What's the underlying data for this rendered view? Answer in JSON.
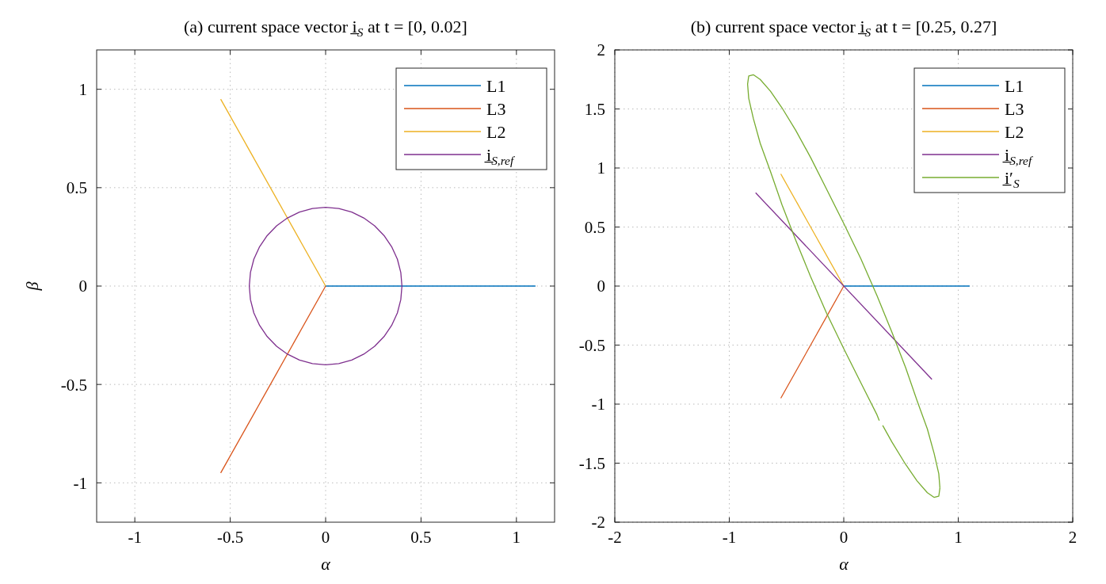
{
  "chart_data": [
    {
      "type": "line",
      "title": "(a) current space vector i̲$_{S}$ at t = [0, 0.02]",
      "xlabel": "α",
      "ylabel": "β",
      "xlim": [
        -1.2,
        1.2
      ],
      "ylim": [
        -1.2,
        1.2
      ],
      "xticks": [
        -1,
        -0.5,
        0,
        0.5,
        1
      ],
      "yticks": [
        -1,
        -0.5,
        0,
        0.5,
        1
      ],
      "grid": true,
      "legend": "top right",
      "series": [
        {
          "name": "L1",
          "color": "#0072bd",
          "x": [
            0,
            1.1
          ],
          "values": [
            0,
            0
          ]
        },
        {
          "name": "L3",
          "color": "#d95319",
          "x": [
            0,
            -0.55
          ],
          "values": [
            0,
            -0.95
          ]
        },
        {
          "name": "L2",
          "color": "#edb120",
          "x": [
            0,
            -0.55
          ],
          "values": [
            0,
            0.95
          ]
        },
        {
          "name": "i̲$_{S,ref}$",
          "color": "#7e2f8e",
          "x": [
            0.4,
            0.394,
            0.376,
            0.346,
            0.306,
            0.257,
            0.2,
            0.137,
            0.069,
            0,
            -0.069,
            -0.137,
            -0.2,
            -0.257,
            -0.306,
            -0.346,
            -0.376,
            -0.394,
            -0.4,
            -0.394,
            -0.376,
            -0.346,
            -0.306,
            -0.257,
            -0.2,
            -0.137,
            -0.069,
            0,
            0.069,
            0.137,
            0.2,
            0.257,
            0.306,
            0.346,
            0.376,
            0.394,
            0.4,
            0.394
          ],
          "values": [
            0,
            0.069,
            0.137,
            0.2,
            0.257,
            0.306,
            0.346,
            0.376,
            0.394,
            0.4,
            0.394,
            0.376,
            0.346,
            0.306,
            0.257,
            0.2,
            0.137,
            0.069,
            0,
            -0.069,
            -0.137,
            -0.2,
            -0.257,
            -0.306,
            -0.346,
            -0.376,
            -0.394,
            -0.4,
            -0.394,
            -0.376,
            -0.346,
            -0.306,
            -0.257,
            -0.2,
            -0.137,
            -0.069,
            0,
            0.069
          ]
        }
      ]
    },
    {
      "type": "line",
      "title": "(b) current space vector i̲$_{S}$ at t = [0.25, 0.27]",
      "xlabel": "α",
      "xlim": [
        -2,
        2
      ],
      "ylim": [
        -2,
        2
      ],
      "xticks": [
        -2,
        -1,
        0,
        1,
        2
      ],
      "yticks": [
        -2,
        -1.5,
        -1,
        -0.5,
        0,
        0.5,
        1,
        1.5,
        2
      ],
      "grid": true,
      "legend": "top right",
      "series": [
        {
          "name": "L1",
          "color": "#0072bd",
          "x": [
            0,
            1.1
          ],
          "values": [
            0,
            0
          ]
        },
        {
          "name": "L3",
          "color": "#d95319",
          "x": [
            0,
            -0.55
          ],
          "values": [
            0,
            -0.95
          ]
        },
        {
          "name": "L2",
          "color": "#edb120",
          "x": [
            0,
            -0.55
          ],
          "values": [
            0,
            0.95
          ]
        },
        {
          "name": "i̲$_{S,ref}$",
          "color": "#7e2f8e",
          "x": [
            -0.77,
            0.77
          ],
          "values": [
            0.79,
            -0.79
          ]
        },
        {
          "name": "i̲′$_{S}$",
          "color": "#77ac30",
          "x": [
            0.84,
            0.83,
            0.79,
            0.73,
            0.64,
            0.54,
            0.42,
            0.29,
            0.15,
            0,
            -0.15,
            -0.29,
            -0.42,
            -0.54,
            -0.64,
            -0.73,
            -0.79,
            -0.83,
            -0.84,
            -0.83,
            -0.79,
            -0.73,
            -0.64,
            -0.54,
            -0.42,
            -0.29,
            -0.15,
            0,
            0.15,
            0.29,
            0.31,
            null,
            0.34,
            0.42,
            0.54,
            0.64,
            0.73,
            0.79,
            0.83,
            0.84
          ],
          "values": [
            -1.71,
            -1.59,
            -1.42,
            -1.21,
            -0.97,
            -0.69,
            -0.39,
            -0.08,
            0.23,
            0.53,
            0.82,
            1.09,
            1.32,
            1.51,
            1.65,
            1.75,
            1.79,
            1.78,
            1.71,
            1.59,
            1.42,
            1.21,
            0.97,
            0.69,
            0.39,
            0.08,
            -0.23,
            -0.53,
            -0.82,
            -1.09,
            -1.14,
            null,
            -1.18,
            -1.32,
            -1.51,
            -1.65,
            -1.75,
            -1.79,
            -1.78,
            -1.71
          ]
        }
      ]
    }
  ]
}
